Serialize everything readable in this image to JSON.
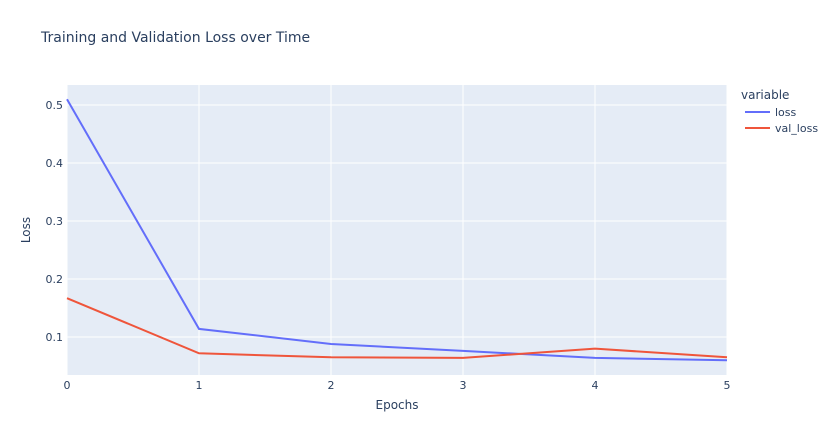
{
  "chart_data": {
    "type": "line",
    "title": "Training and Validation Loss over Time",
    "x_label": "Epochs",
    "y_label": "Loss",
    "legend_title": "variable",
    "x": [
      0,
      1,
      2,
      3,
      4,
      5
    ],
    "series": [
      {
        "name": "loss",
        "color": "#636efa",
        "values": [
          0.51,
          0.114,
          0.088,
          0.076,
          0.064,
          0.06
        ]
      },
      {
        "name": "val_loss",
        "color": "#ef553b",
        "values": [
          0.167,
          0.072,
          0.065,
          0.064,
          0.08,
          0.065
        ]
      }
    ],
    "xlim": [
      0,
      5
    ],
    "xticks": [
      0,
      1,
      2,
      3,
      4,
      5
    ],
    "ylim": [
      0.0345,
      0.5345
    ],
    "yticks": [
      0.1,
      0.2,
      0.3,
      0.4,
      0.5
    ],
    "grid": true
  }
}
